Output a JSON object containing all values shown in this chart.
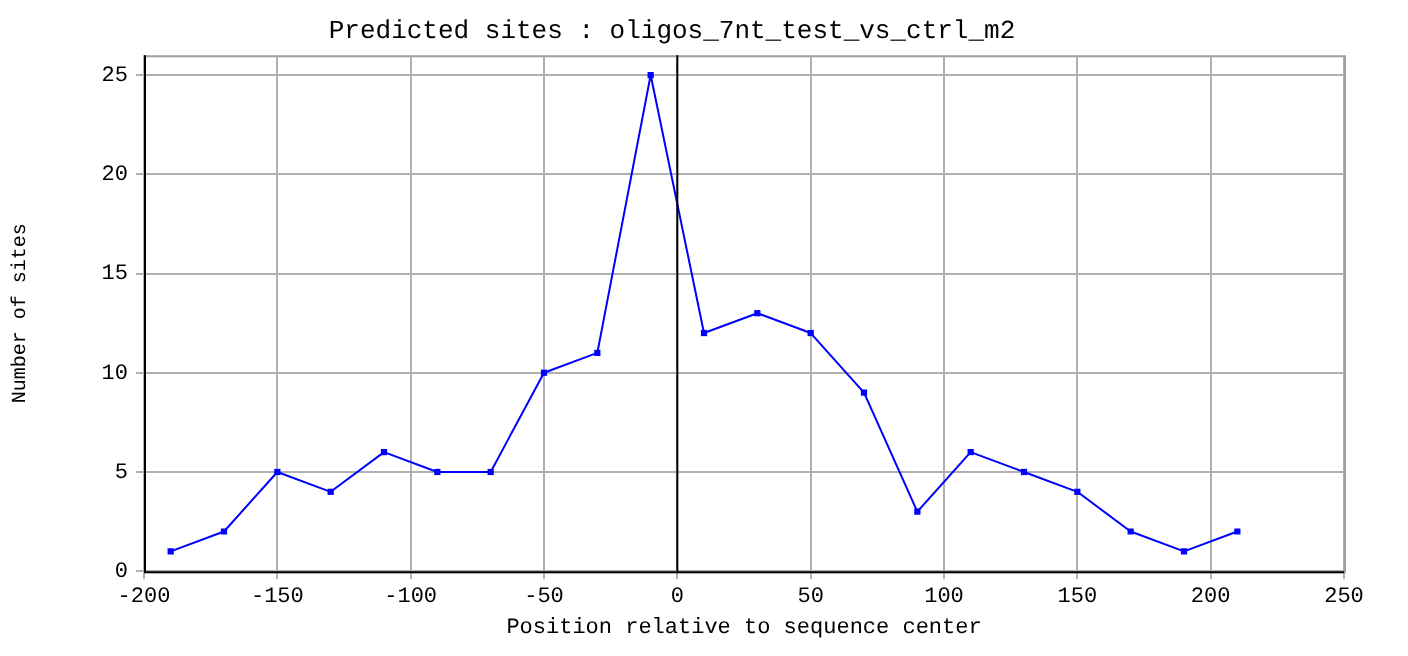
{
  "chart_data": {
    "type": "line",
    "title": "Predicted sites : oligos_7nt_test_vs_ctrl_m2",
    "xlabel": "Position relative to sequence center",
    "ylabel": "Number of sites",
    "x": [
      -190,
      -170,
      -150,
      -130,
      -110,
      -90,
      -70,
      -50,
      -30,
      -10,
      10,
      30,
      50,
      70,
      90,
      110,
      130,
      150,
      170,
      190,
      210
    ],
    "series": [
      {
        "color": "#0000ff",
        "values": [
          1,
          2,
          5,
          4,
          6,
          5,
          5,
          10,
          11,
          25,
          12,
          13,
          12,
          9,
          3,
          6,
          5,
          4,
          2,
          1,
          2
        ]
      }
    ],
    "xlim": [
      -200,
      250
    ],
    "xticks": [
      -200,
      -150,
      -100,
      -50,
      0,
      50,
      100,
      150,
      200,
      250
    ],
    "ylim": [
      0,
      26
    ],
    "yticks": [
      0,
      5,
      10,
      15,
      20,
      25
    ],
    "ref_lines": [
      {
        "axis": "x",
        "value": 0,
        "color": "#000000"
      }
    ],
    "grid": true,
    "legend": false,
    "marker": "square",
    "line_style": "solid"
  }
}
